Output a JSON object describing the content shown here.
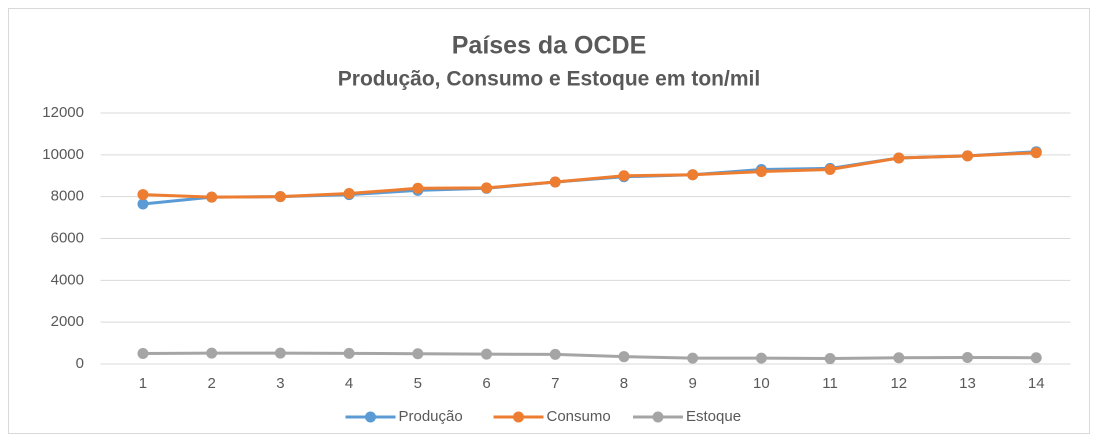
{
  "chart_data": {
    "type": "line",
    "title": "Países da OCDE",
    "subtitle": "Produção, Consumo e Estoque em ton/mil",
    "categories": [
      "1",
      "2",
      "3",
      "4",
      "5",
      "6",
      "7",
      "8",
      "9",
      "10",
      "11",
      "12",
      "13",
      "14"
    ],
    "series": [
      {
        "name": "Produção",
        "color": "#5b9bd5",
        "values": [
          7650,
          7980,
          8000,
          8100,
          8300,
          8400,
          8700,
          8950,
          9050,
          9300,
          9350,
          9850,
          9950,
          10150
        ]
      },
      {
        "name": "Consumo",
        "color": "#ed7d31",
        "values": [
          8100,
          7980,
          8000,
          8150,
          8400,
          8420,
          8700,
          9000,
          9050,
          9200,
          9300,
          9850,
          9950,
          10100
        ]
      },
      {
        "name": "Estoque",
        "color": "#a5a5a5",
        "values": [
          500,
          520,
          520,
          510,
          490,
          470,
          460,
          350,
          280,
          280,
          260,
          300,
          310,
          300
        ]
      }
    ],
    "ylim": [
      0,
      12000
    ],
    "yticks": [
      0,
      2000,
      4000,
      6000,
      8000,
      10000,
      12000
    ],
    "grid": true,
    "legend": "bottom"
  }
}
